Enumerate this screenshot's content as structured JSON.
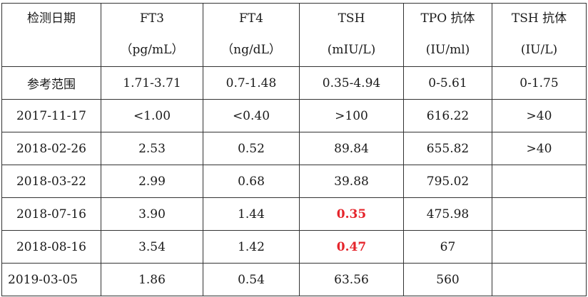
{
  "table": {
    "header": [
      {
        "line1": "检测日期",
        "line2": ""
      },
      {
        "line1": "FT3",
        "line2": "（pg/mL）"
      },
      {
        "line1": "FT4",
        "line2": "（ng/dL）"
      },
      {
        "line1": "TSH",
        "line2": "(mIU/L)"
      },
      {
        "line1": "TPO 抗体",
        "line2": "(IU/ml)"
      },
      {
        "line1": "TSH 抗体",
        "line2": "(IU/L)"
      }
    ],
    "reference": [
      "参考范围",
      "1.71-3.71",
      "0.7-1.48",
      "0.35-4.94",
      "0-5.61",
      "0-1.75"
    ],
    "rows": [
      [
        "2017-11-17",
        "<1.00",
        "<0.40",
        ">100",
        "616.22",
        ">40"
      ],
      [
        "2018-02-26",
        "2.53",
        "0.52",
        "89.84",
        "655.82",
        ">40"
      ],
      [
        "2018-03-22",
        "2.99",
        "0.68",
        "39.88",
        "795.02",
        ""
      ],
      [
        "2018-07-16",
        "3.90",
        "1.44",
        "0.35",
        "475.98",
        ""
      ],
      [
        "2018-08-16",
        "3.54",
        "1.42",
        "0.47",
        "67",
        ""
      ],
      [
        "2019-03-05",
        "1.86",
        "0.54",
        "63.56",
        "560",
        ""
      ]
    ],
    "highlight_color": "#e5242b"
  }
}
